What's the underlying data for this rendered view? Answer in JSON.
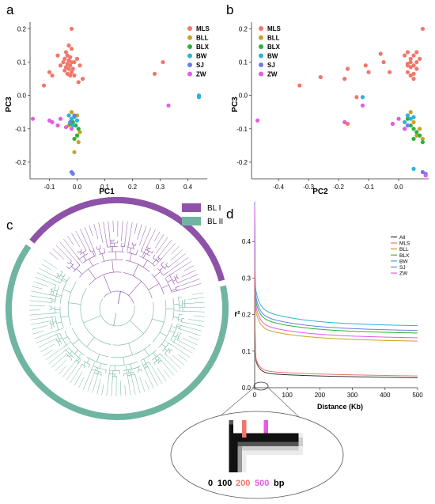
{
  "panel_labels": {
    "a": "a",
    "b": "b",
    "c": "c",
    "d": "d"
  },
  "legend_pca": [
    "MLS",
    "BLL",
    "BLX",
    "BW",
    "SJ",
    "ZW"
  ],
  "colors": {
    "MLS": "#f0776b",
    "BLL": "#c9a227",
    "BLX": "#2db13b",
    "BW": "#2bb3d8",
    "SJ": "#6b7de8",
    "ZW": "#e55ce1",
    "All": "#333333",
    "BL_I": "#8e52a9",
    "BL_II": "#6fb5a2"
  },
  "tree_legend": [
    "BL I",
    "BL II"
  ],
  "inset": {
    "t0": "0",
    "t100": "100",
    "t200": "200",
    "t500": "500",
    "unit": "bp"
  },
  "chart_data": [
    {
      "type": "scatter",
      "title": "",
      "xlabel": "PC1",
      "ylabel": "PC3",
      "xlim": [
        -0.17,
        0.47
      ],
      "ylim": [
        -0.25,
        0.22
      ],
      "xticks": [
        "-0.1",
        "0.0",
        "0.1",
        "0.2",
        "0.3",
        "0.4"
      ],
      "yticks": [
        "-0.2",
        "-0.1",
        "0.0",
        "0.1",
        "0.2"
      ],
      "series": [
        {
          "name": "MLS",
          "points": [
            [
              -0.02,
              0.2
            ],
            [
              -0.03,
              0.15
            ],
            [
              -0.02,
              0.14
            ],
            [
              -0.04,
              0.13
            ],
            [
              -0.035,
              0.12
            ],
            [
              -0.025,
              0.115
            ],
            [
              -0.045,
              0.11
            ],
            [
              -0.03,
              0.105
            ],
            [
              -0.02,
              0.1
            ],
            [
              -0.05,
              0.1
            ],
            [
              -0.035,
              0.095
            ],
            [
              -0.025,
              0.09
            ],
            [
              -0.04,
              0.085
            ],
            [
              -0.03,
              0.08
            ],
            [
              -0.015,
              0.08
            ],
            [
              -0.045,
              0.075
            ],
            [
              -0.02,
              0.07
            ],
            [
              -0.035,
              0.065
            ],
            [
              -0.025,
              0.06
            ],
            [
              -0.01,
              0.1
            ],
            [
              -0.06,
              0.09
            ],
            [
              -0.01,
              0.06
            ],
            [
              0.0,
              0.11
            ],
            [
              -0.09,
              0.06
            ],
            [
              -0.12,
              0.03
            ],
            [
              -0.1,
              0.07
            ],
            [
              0.005,
              0.04
            ],
            [
              0.02,
              0.05
            ],
            [
              0.28,
              0.065
            ],
            [
              0.31,
              0.1
            ],
            [
              -0.07,
              0.12
            ],
            [
              0.01,
              0.09
            ]
          ]
        },
        {
          "name": "BLL",
          "points": [
            [
              -0.02,
              -0.05
            ],
            [
              0.0,
              -0.06
            ],
            [
              0.01,
              -0.11
            ],
            [
              -0.01,
              -0.17
            ],
            [
              -0.03,
              -0.09
            ],
            [
              0.005,
              -0.14
            ]
          ]
        },
        {
          "name": "BLX",
          "points": [
            [
              -0.015,
              -0.08
            ],
            [
              -0.005,
              -0.09
            ],
            [
              0.0,
              -0.12
            ],
            [
              -0.01,
              -0.13
            ],
            [
              -0.02,
              -0.07
            ],
            [
              0.005,
              -0.1
            ],
            [
              -0.025,
              -0.085
            ]
          ]
        },
        {
          "name": "BW",
          "points": [
            [
              -0.03,
              -0.06
            ],
            [
              -0.02,
              -0.07
            ],
            [
              -0.01,
              -0.065
            ],
            [
              0.0,
              -0.075
            ],
            [
              -0.015,
              -0.09
            ],
            [
              0.44,
              -0.005
            ],
            [
              0.44,
              0.0
            ]
          ]
        },
        {
          "name": "SJ",
          "points": [
            [
              -0.02,
              -0.23
            ],
            [
              -0.015,
              -0.235
            ],
            [
              -0.01,
              -0.06
            ],
            [
              -0.025,
              -0.08
            ]
          ]
        },
        {
          "name": "ZW",
          "points": [
            [
              -0.16,
              -0.07
            ],
            [
              -0.1,
              -0.075
            ],
            [
              -0.09,
              -0.08
            ],
            [
              -0.07,
              -0.09
            ],
            [
              -0.06,
              -0.07
            ],
            [
              0.33,
              -0.03
            ],
            [
              -0.04,
              -0.095
            ],
            [
              -0.02,
              -0.1
            ]
          ]
        }
      ]
    },
    {
      "type": "scatter",
      "title": "",
      "xlabel": "PC2",
      "ylabel": "PC3",
      "xlim": [
        -0.49,
        0.1
      ],
      "ylim": [
        -0.25,
        0.22
      ],
      "xticks": [
        "-0.4",
        "-0.3",
        "-0.2",
        "-0.1",
        "0.0"
      ],
      "yticks": [
        "-0.2",
        "-0.1",
        "0.0",
        "0.1",
        "0.2"
      ],
      "series": [
        {
          "name": "MLS",
          "points": [
            [
              0.08,
              0.2
            ],
            [
              0.03,
              0.13
            ],
            [
              0.05,
              0.12
            ],
            [
              0.04,
              0.11
            ],
            [
              0.06,
              0.1
            ],
            [
              0.03,
              0.095
            ],
            [
              0.05,
              0.09
            ],
            [
              0.04,
              0.085
            ],
            [
              0.06,
              0.08
            ],
            [
              0.03,
              0.07
            ],
            [
              0.05,
              0.065
            ],
            [
              0.04,
              0.06
            ],
            [
              0.02,
              0.12
            ],
            [
              0.07,
              0.11
            ],
            [
              0.03,
              0.09
            ],
            [
              0.04,
              0.1
            ],
            [
              -0.03,
              0.07
            ],
            [
              -0.06,
              0.125
            ],
            [
              -0.05,
              0.1
            ],
            [
              -0.1,
              0.07
            ],
            [
              -0.11,
              0.09
            ],
            [
              -0.17,
              0.08
            ],
            [
              -0.18,
              0.05
            ],
            [
              -0.26,
              0.055
            ],
            [
              -0.33,
              0.03
            ],
            [
              -0.17,
              -0.085
            ],
            [
              -0.14,
              -0.005
            ],
            [
              0.05,
              0.05
            ],
            [
              0.06,
              0.13
            ]
          ]
        },
        {
          "name": "BLL",
          "points": [
            [
              0.04,
              -0.05
            ],
            [
              0.05,
              -0.08
            ],
            [
              0.07,
              -0.1
            ],
            [
              0.08,
              -0.13
            ],
            [
              0.03,
              -0.06
            ],
            [
              0.06,
              -0.12
            ]
          ]
        },
        {
          "name": "BLX",
          "points": [
            [
              0.04,
              -0.09
            ],
            [
              0.05,
              -0.1
            ],
            [
              0.06,
              -0.11
            ],
            [
              0.07,
              -0.12
            ],
            [
              0.03,
              -0.07
            ],
            [
              0.05,
              -0.13
            ],
            [
              0.08,
              -0.14
            ]
          ]
        },
        {
          "name": "BW",
          "points": [
            [
              0.03,
              -0.06
            ],
            [
              0.04,
              -0.07
            ],
            [
              0.05,
              -0.065
            ],
            [
              0.02,
              -0.08
            ],
            [
              -0.12,
              -0.005
            ],
            [
              0.05,
              -0.22
            ]
          ]
        },
        {
          "name": "SJ",
          "points": [
            [
              0.08,
              -0.23
            ],
            [
              0.09,
              -0.235
            ],
            [
              0.02,
              -0.1
            ],
            [
              0.03,
              -0.09
            ]
          ]
        },
        {
          "name": "ZW",
          "points": [
            [
              -0.47,
              -0.075
            ],
            [
              -0.18,
              -0.08
            ],
            [
              -0.12,
              -0.03
            ],
            [
              -0.02,
              -0.085
            ],
            [
              0.0,
              -0.07
            ],
            [
              0.02,
              -0.1
            ],
            [
              0.09,
              -0.24
            ]
          ]
        }
      ]
    },
    {
      "type": "line",
      "title": "",
      "xlabel": "Distance (Kb)",
      "ylabel": "r²",
      "xlim": [
        0,
        500
      ],
      "ylim": [
        0,
        0.42
      ],
      "xticks": [
        "0",
        "100",
        "200",
        "300",
        "400",
        "500"
      ],
      "yticks": [
        "0.0",
        "0.1",
        "0.2",
        "0.3",
        "0.4"
      ],
      "legend": "top-right",
      "series": [
        {
          "name": "All",
          "r0": 0.4,
          "a": 0.033,
          "b": 0.045
        },
        {
          "name": "MLS",
          "r0": 0.4,
          "a": 0.038,
          "b": 0.045
        },
        {
          "name": "BLL",
          "r0": 0.4,
          "a": 0.133,
          "b": 0.06
        },
        {
          "name": "BLX",
          "r0": 0.4,
          "a": 0.155,
          "b": 0.06
        },
        {
          "name": "BW",
          "r0": 0.4,
          "a": 0.175,
          "b": 0.065
        },
        {
          "name": "SJ",
          "r0": 0.4,
          "a": 0.162,
          "b": 0.065
        },
        {
          "name": "ZW",
          "r0": 0.4,
          "a": 0.142,
          "b": 0.065
        }
      ]
    },
    {
      "type": "tree",
      "title": "",
      "groups": [
        {
          "name": "BL I",
          "tips": 40
        },
        {
          "name": "BL II",
          "tips": 72
        }
      ]
    }
  ]
}
